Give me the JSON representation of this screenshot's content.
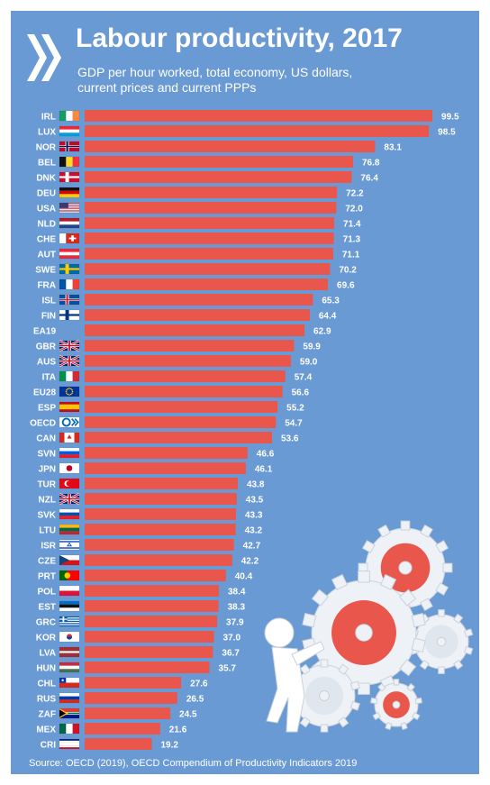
{
  "title": "Labour productivity, 2017",
  "subtitle_line1": "GDP per hour worked, total economy, US dollars,",
  "subtitle_line2": "current prices and current PPPs",
  "source": "Source: OECD (2019), OECD Compendium of Productivity Indicators 2019",
  "colors": {
    "background": "#6a9ad4",
    "bar": "#e8564c",
    "text": "#ffffff"
  },
  "chart_data": {
    "type": "bar",
    "orientation": "horizontal",
    "title": "Labour productivity, 2017",
    "categories": [
      "IRL",
      "LUX",
      "NOR",
      "BEL",
      "DNK",
      "DEU",
      "USA",
      "NLD",
      "CHE",
      "AUT",
      "SWE",
      "FRA",
      "ISL",
      "FIN",
      "EA19",
      "GBR",
      "AUS",
      "ITA",
      "EU28",
      "ESP",
      "OECD",
      "CAN",
      "SVN",
      "JPN",
      "TUR",
      "NZL",
      "SVK",
      "LTU",
      "ISR",
      "CZE",
      "PRT",
      "POL",
      "EST",
      "GRC",
      "KOR",
      "LVA",
      "HUN",
      "CHL",
      "RUS",
      "ZAF",
      "MEX",
      "CRI"
    ],
    "values": [
      99.5,
      98.5,
      83.1,
      76.8,
      76.4,
      72.2,
      72.0,
      71.4,
      71.3,
      71.1,
      70.2,
      69.6,
      65.3,
      64.4,
      62.9,
      59.9,
      59.0,
      57.4,
      56.6,
      55.2,
      54.7,
      53.6,
      46.6,
      46.1,
      43.8,
      43.5,
      43.3,
      43.2,
      42.7,
      42.2,
      40.4,
      38.4,
      38.3,
      37.9,
      37.0,
      36.7,
      35.7,
      27.6,
      26.5,
      24.5,
      21.6,
      19.2
    ],
    "value_labels": [
      "99.5",
      "98.5",
      "83.1",
      "76.8",
      "76.4",
      "72.2",
      "72.0",
      "71.4",
      "71.3",
      "71.1",
      "70.2",
      "69.6",
      "65.3",
      "64.4",
      "62.9",
      "59.9",
      "59.0",
      "57.4",
      "56.6",
      "55.2",
      "54.7",
      "53.6",
      "46.6",
      "46.1",
      "43.8",
      "43.5",
      "43.3",
      "43.2",
      "42.7",
      "42.2",
      "40.4",
      "38.4",
      "38.3",
      "37.9",
      "37.0",
      "36.7",
      "35.7",
      "27.6",
      "26.5",
      "24.5",
      "21.6",
      "19.2"
    ],
    "grid": false,
    "legend": "none"
  }
}
